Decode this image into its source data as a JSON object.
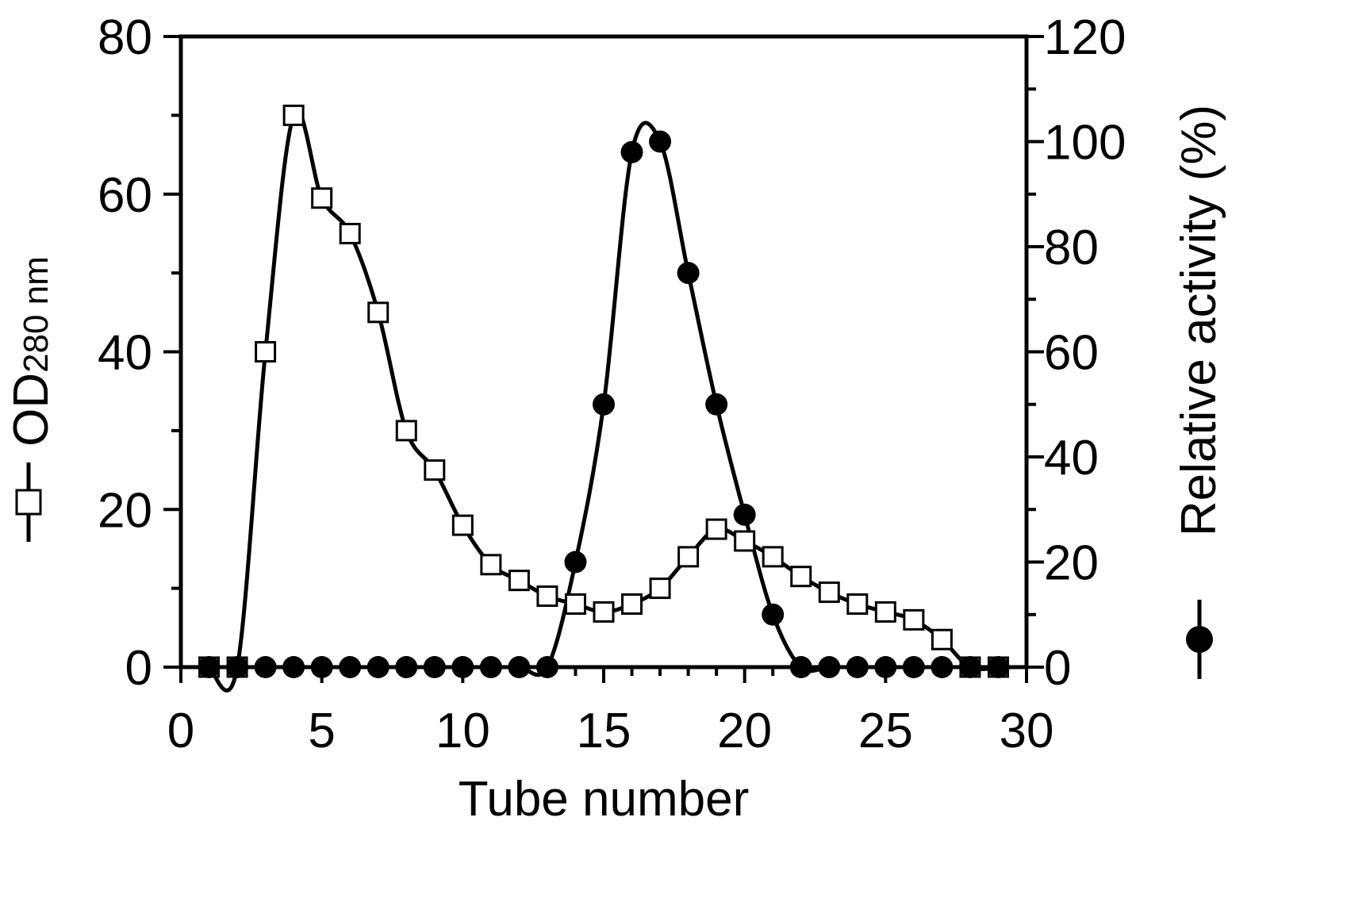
{
  "chart_data": {
    "type": "line",
    "xlabel": "Tube number",
    "ylabel_left": {
      "main": "OD",
      "sub": "280",
      "unit": " nm"
    },
    "ylabel_right": "Relative activity (%)",
    "xlim": [
      0,
      30
    ],
    "ylim_left": [
      0,
      80
    ],
    "ylim_right": [
      0,
      120
    ],
    "xticks": [
      "0",
      "5",
      "10",
      "15",
      "20",
      "25",
      "30"
    ],
    "yticks_left": [
      "0",
      "20",
      "40",
      "60",
      "80"
    ],
    "yticks_right": [
      "0",
      "20",
      "40",
      "60",
      "80",
      "100",
      "120"
    ],
    "grid": false,
    "legend": "axis-labels",
    "series": [
      {
        "axis": "left",
        "marker": "open-square",
        "x": [
          1,
          2,
          3,
          4,
          5,
          6,
          7,
          8,
          9,
          10,
          11,
          12,
          13,
          14,
          15,
          16,
          17,
          18,
          19,
          20,
          21,
          22,
          23,
          24,
          25,
          26,
          27,
          28,
          29
        ],
        "y": [
          0,
          0,
          40,
          70,
          59.5,
          55,
          45,
          30,
          25,
          18,
          13,
          11,
          9,
          8,
          7,
          8,
          10,
          14,
          17.5,
          16,
          14,
          11.5,
          9.5,
          8,
          7,
          6,
          3.5,
          0,
          0
        ]
      },
      {
        "axis": "right",
        "marker": "filled-circle",
        "x": [
          1,
          2,
          3,
          4,
          5,
          6,
          7,
          8,
          9,
          10,
          11,
          12,
          13,
          14,
          15,
          16,
          17,
          18,
          19,
          20,
          21,
          22,
          23,
          24,
          25,
          26,
          27,
          28,
          29
        ],
        "y": [
          0,
          0,
          0,
          0,
          0,
          0,
          0,
          0,
          0,
          0,
          0,
          0,
          0,
          20,
          50,
          98,
          100,
          75,
          50,
          29,
          10,
          0,
          0,
          0,
          0,
          0,
          0,
          0,
          0
        ]
      }
    ]
  }
}
